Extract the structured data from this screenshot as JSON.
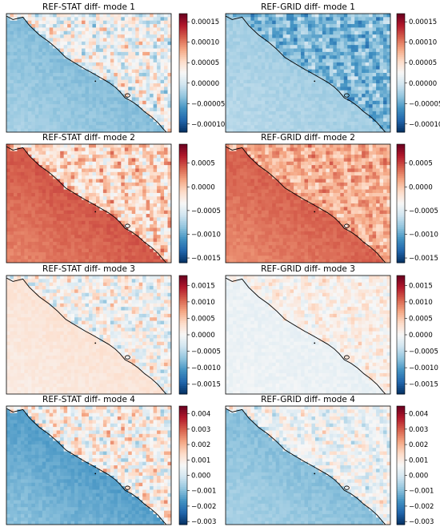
{
  "figure": {
    "colormap": {
      "name": "RdBu_r",
      "stops": [
        "#053061",
        "#2166ac",
        "#4393c3",
        "#92c5de",
        "#d1e5f0",
        "#f7f7f7",
        "#fddbc7",
        "#f4a582",
        "#d6604d",
        "#b2182b",
        "#67001f"
      ]
    },
    "coastline_color": "#000000"
  },
  "chart_data": [
    {
      "type": "heatmap",
      "title": "REF-STAT diff- mode 1",
      "vlim": [
        -0.00012,
        0.00017
      ],
      "colorbar_ticks": [
        "0.00015",
        "0.00010",
        "0.00005",
        "0.00000",
        "−0.00005",
        "−0.00010"
      ],
      "colorbar_tick_values": [
        0.00015,
        0.0001,
        5e-05,
        0,
        -5e-05,
        -0.0001
      ],
      "sea_value": -3e-05,
      "land_mean": 2e-05,
      "land_spread": 0.00012
    },
    {
      "type": "heatmap",
      "title": "REF-GRID diff- mode 1",
      "vlim": [
        -0.00012,
        0.00017
      ],
      "colorbar_ticks": [
        "0.00015",
        "0.00010",
        "0.00005",
        "0.00000",
        "−0.00005",
        "−0.00010"
      ],
      "colorbar_tick_values": [
        0.00015,
        0.0001,
        5e-05,
        0,
        -5e-05,
        -0.0001
      ],
      "sea_value": -2e-05,
      "land_mean": -4e-05,
      "land_spread": 8e-05
    },
    {
      "type": "heatmap",
      "title": "REF-STAT diff- mode 2",
      "vlim": [
        -0.0016,
        0.0009
      ],
      "colorbar_ticks": [
        "0.0005",
        "0.0000",
        "−0.0005",
        "−0.0010",
        "−0.0015"
      ],
      "colorbar_tick_values": [
        0.0005,
        0,
        -0.0005,
        -0.001,
        -0.0015
      ],
      "sea_value": 0.00035,
      "land_mean": -0.0001,
      "land_spread": 0.0009
    },
    {
      "type": "heatmap",
      "title": "REF-GRID diff- mode 2",
      "vlim": [
        -0.0016,
        0.0009
      ],
      "colorbar_ticks": [
        "0.0005",
        "0.0000",
        "−0.0005",
        "−0.0010",
        "−0.0015"
      ],
      "colorbar_tick_values": [
        0.0005,
        0,
        -0.0005,
        -0.001,
        -0.0015
      ],
      "sea_value": 0.00032,
      "land_mean": 0.0001,
      "land_spread": 0.0006
    },
    {
      "type": "heatmap",
      "title": "REF-STAT diff- mode 3",
      "vlim": [
        -0.0018,
        0.0018
      ],
      "colorbar_ticks": [
        "0.0015",
        "0.0010",
        "0.0005",
        "0.0000",
        "−0.0005",
        "−0.0010",
        "−0.0015"
      ],
      "colorbar_tick_values": [
        0.0015,
        0.001,
        0.0005,
        0,
        -0.0005,
        -0.001,
        -0.0015
      ],
      "sea_value": 0.0002,
      "land_mean": 0.0,
      "land_spread": 0.0012
    },
    {
      "type": "heatmap",
      "title": "REF-GRID diff- mode 3",
      "vlim": [
        -0.0018,
        0.0018
      ],
      "colorbar_ticks": [
        "0.0015",
        "0.0010",
        "0.0005",
        "0.0000",
        "−0.0005",
        "−0.0010",
        "−0.0015"
      ],
      "colorbar_tick_values": [
        0.0015,
        0.001,
        0.0005,
        0,
        -0.0005,
        -0.001,
        -0.0015
      ],
      "sea_value": -0.0001,
      "land_mean": 0.0001,
      "land_spread": 0.0007
    },
    {
      "type": "heatmap",
      "title": "REF-STAT diff- mode 4",
      "vlim": [
        -0.0032,
        0.0045
      ],
      "colorbar_ticks": [
        "0.004",
        "0.003",
        "0.002",
        "0.001",
        "0.000",
        "−0.001",
        "−0.002",
        "−0.003"
      ],
      "colorbar_tick_values": [
        0.004,
        0.003,
        0.002,
        0.001,
        0,
        -0.001,
        -0.002,
        -0.003
      ],
      "sea_value": -0.0012,
      "land_mean": 0.0008,
      "land_spread": 0.003
    },
    {
      "type": "heatmap",
      "title": "REF-GRID diff- mode 4",
      "vlim": [
        -0.0032,
        0.0045
      ],
      "colorbar_ticks": [
        "0.004",
        "0.003",
        "0.002",
        "0.001",
        "0.000",
        "−0.001",
        "−0.002",
        "−0.003"
      ],
      "colorbar_tick_values": [
        0.004,
        0.003,
        0.002,
        0.001,
        0,
        -0.001,
        -0.002,
        -0.003
      ],
      "sea_value": -0.0008,
      "land_mean": 0.0005,
      "land_spread": 0.0022
    }
  ]
}
